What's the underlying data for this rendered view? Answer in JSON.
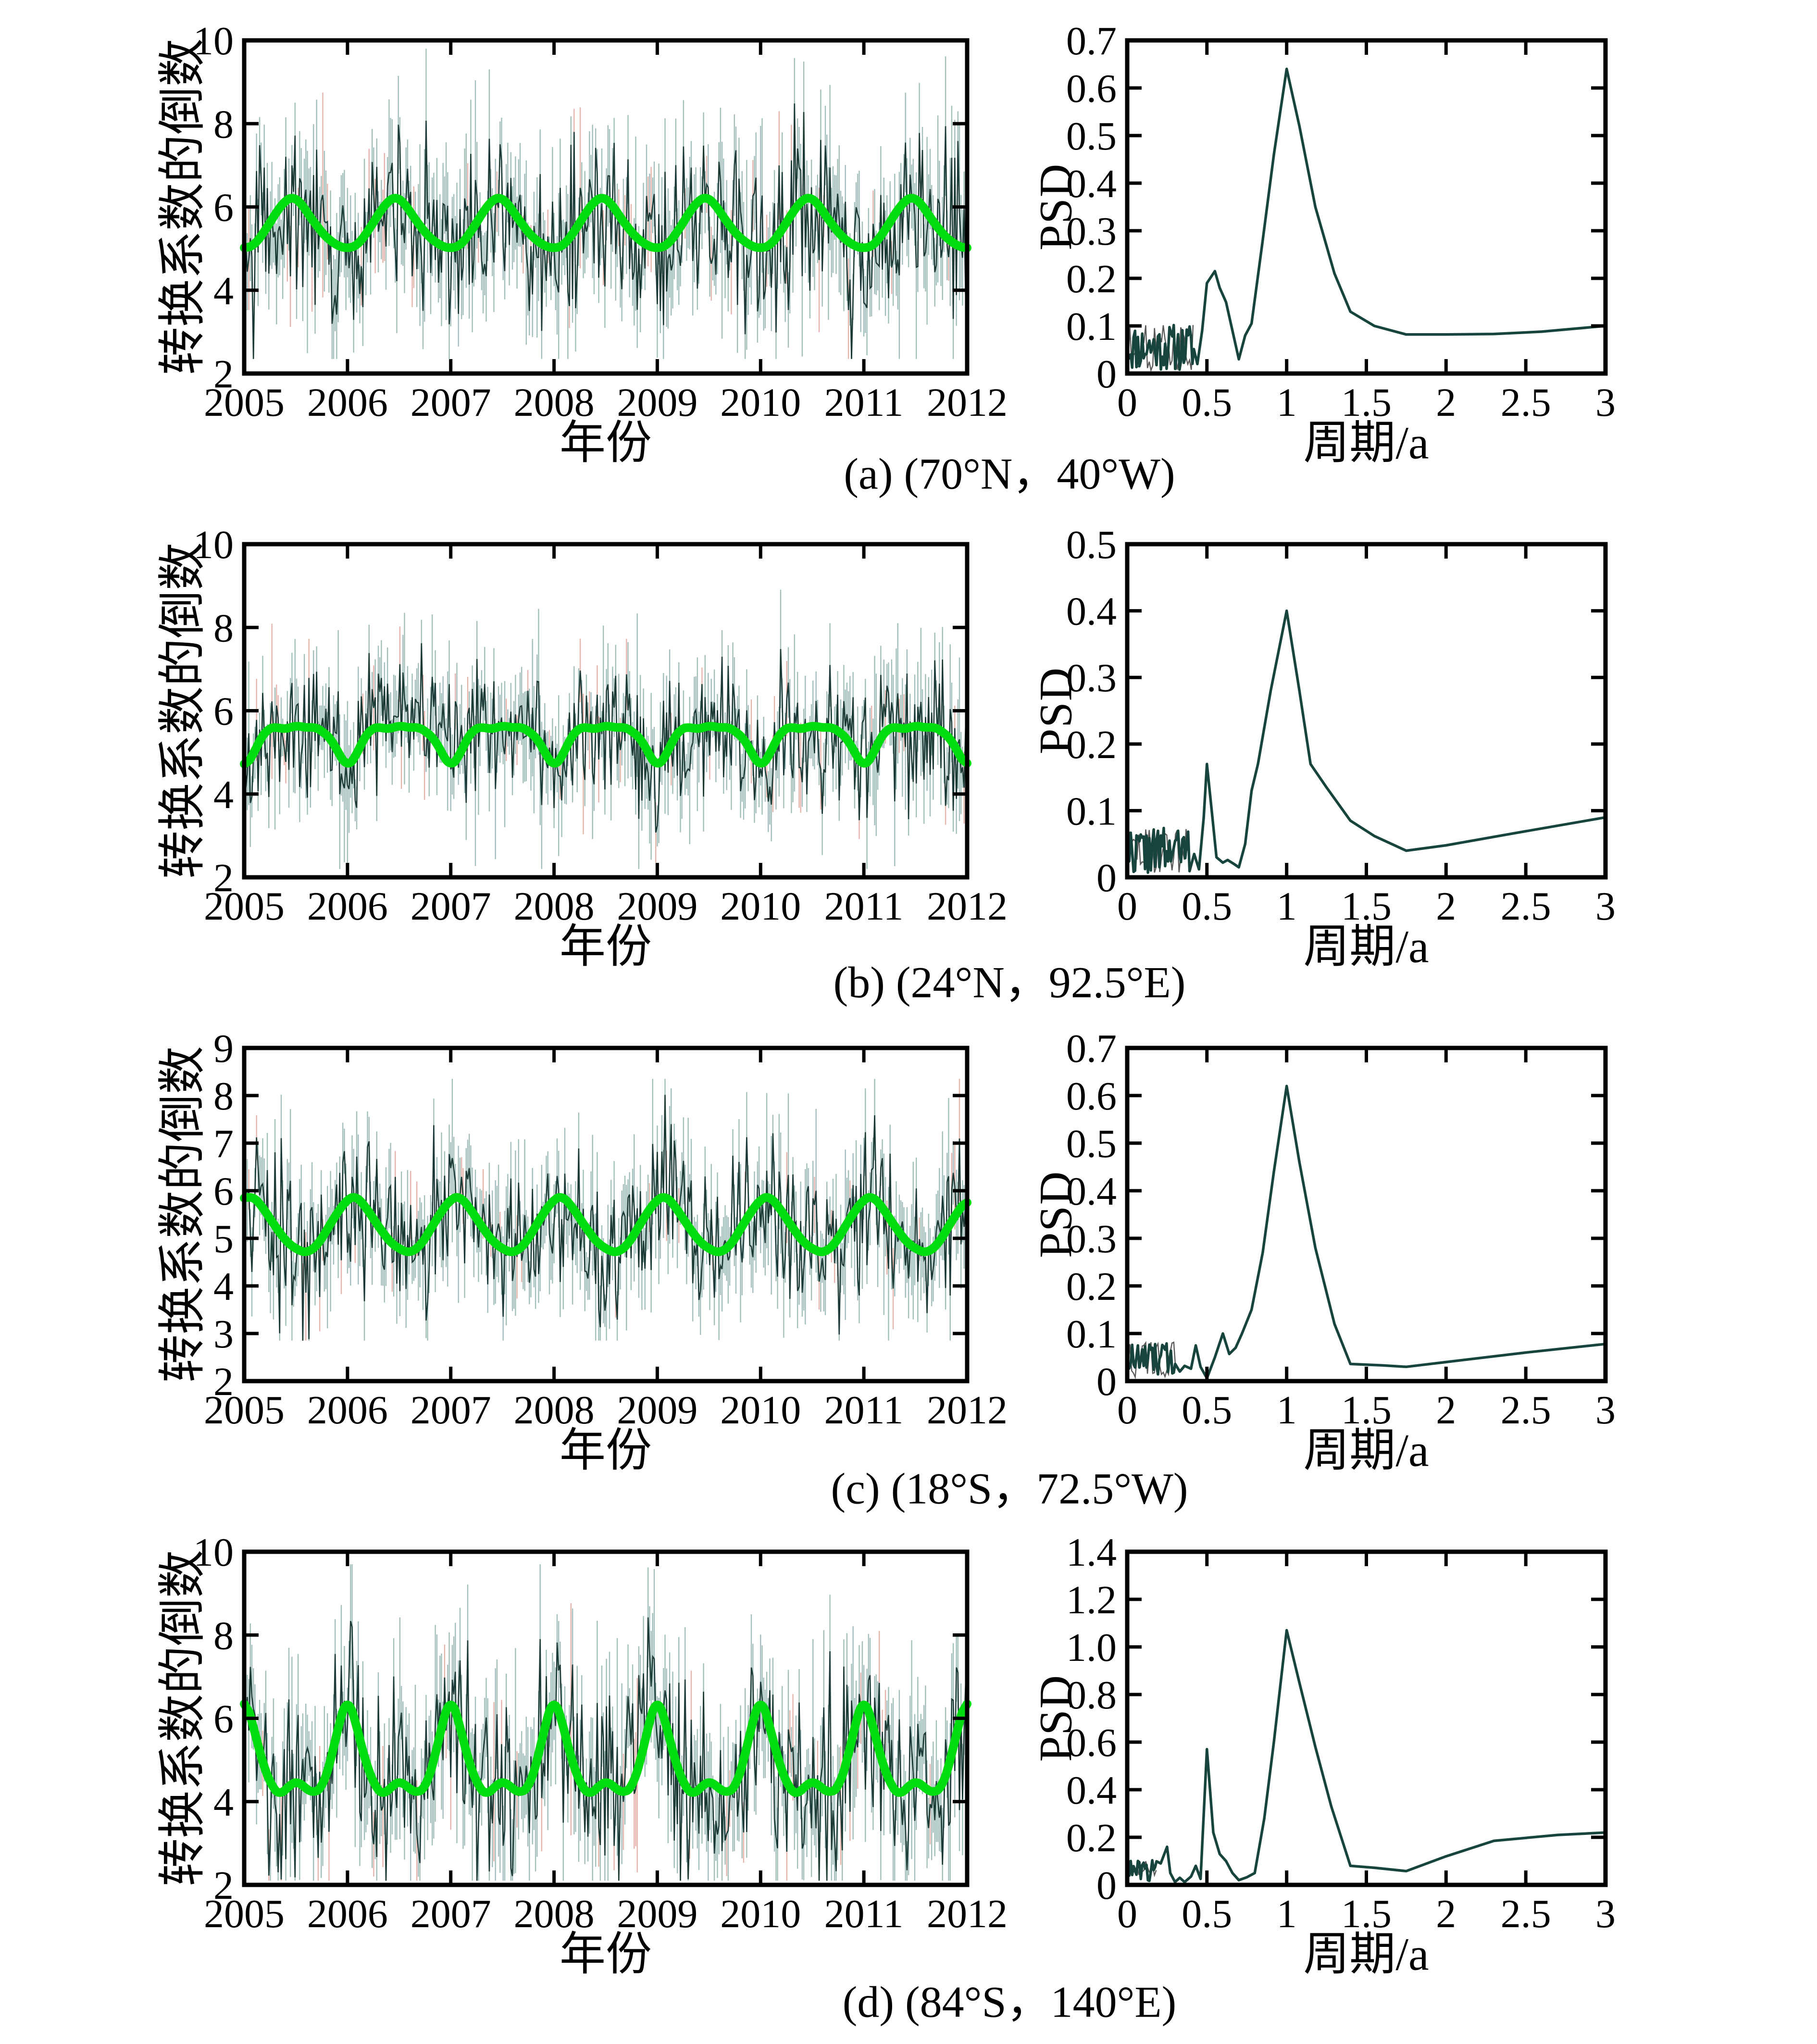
{
  "colors": {
    "trend": "#00dc0f",
    "noise_bar": "#a2bebb",
    "noise_bar_alt": "#e4b4ac",
    "noise_line": "#1b3a35",
    "psd_line": "#17453d",
    "axis": "#000000",
    "background": "#ffffff"
  },
  "chart_data": {
    "type": "line",
    "description": "Four station panels. Left charts: daily reciprocal of conversion coefficient (noisy dark series with light error bars) with smooth green seasonal fit, 2005-2012. Right charts: PSD vs period in years with dominant annual (1 a) peak and semiannual (0.5 a) secondary peak.",
    "rows": [
      {
        "id": "a",
        "caption": "(a) (70°N，40°W)",
        "timeseries": {
          "ylabel": "转换系数的倒数",
          "xlabel": "年份",
          "xlim": [
            2005,
            2012
          ],
          "ylim": [
            2,
            10
          ],
          "xtick_labels": [
            "2005",
            "2006",
            "2007",
            "2008",
            "2009",
            "2010",
            "2011",
            "2012"
          ],
          "ytick_values": [
            2,
            4,
            6,
            8,
            10
          ],
          "ytick_labels": [
            "2",
            "4",
            "6",
            "8",
            "10"
          ],
          "trend_summary": "annual cycle: min ~5.0 at year start, max ~6.25 mid-year",
          "seasonal_profile": [
            [
              0,
              5.0
            ],
            [
              0.1,
              5.08
            ],
            [
              0.22,
              5.5
            ],
            [
              0.33,
              5.95
            ],
            [
              0.42,
              6.2
            ],
            [
              0.47,
              6.25
            ],
            [
              0.55,
              6.1
            ],
            [
              0.65,
              5.72
            ],
            [
              0.78,
              5.3
            ],
            [
              0.9,
              5.07
            ],
            [
              1,
              5.0
            ]
          ],
          "noise": {
            "seed": 101,
            "sd": 1.05,
            "err": 0.85,
            "clip": [
              2.35,
              9.8
            ]
          }
        },
        "psd": {
          "ylabel": "PSD",
          "xlabel": "周期/a",
          "xlim": [
            0,
            3
          ],
          "ylim": [
            0,
            0.7
          ],
          "xtick_values": [
            0,
            0.5,
            1,
            1.5,
            2,
            2.5,
            3
          ],
          "xtick_labels": [
            "0",
            "0.5",
            "1",
            "1.5",
            "2",
            "2.5",
            "3"
          ],
          "ytick_values": [
            0,
            0.1,
            0.2,
            0.3,
            0.4,
            0.5,
            0.6,
            0.7
          ],
          "ytick_labels": [
            "0",
            "0.1",
            "0.2",
            "0.3",
            "0.4",
            "0.5",
            "0.6",
            "0.7"
          ],
          "main_peak": {
            "period_a": 1.0,
            "psd": 0.64
          },
          "secondary_peak": {
            "period_a": 0.55,
            "psd": 0.21
          },
          "noise": {
            "x_end": 0.42,
            "mean": 0.055,
            "amp": 0.05,
            "seed": 11
          },
          "points": [
            [
              0.44,
              0.02
            ],
            [
              0.47,
              0.09
            ],
            [
              0.5,
              0.19
            ],
            [
              0.55,
              0.215
            ],
            [
              0.58,
              0.18
            ],
            [
              0.62,
              0.15
            ],
            [
              0.66,
              0.09
            ],
            [
              0.7,
              0.03
            ],
            [
              0.74,
              0.08
            ],
            [
              0.78,
              0.105
            ],
            [
              0.85,
              0.28
            ],
            [
              0.92,
              0.46
            ],
            [
              1.0,
              0.64
            ],
            [
              1.08,
              0.52
            ],
            [
              1.18,
              0.35
            ],
            [
              1.3,
              0.21
            ],
            [
              1.4,
              0.13
            ],
            [
              1.55,
              0.1
            ],
            [
              1.75,
              0.082
            ],
            [
              2.0,
              0.082
            ],
            [
              2.3,
              0.083
            ],
            [
              2.6,
              0.088
            ],
            [
              3.0,
              0.1
            ]
          ]
        }
      },
      {
        "id": "b",
        "caption": "(b) (24°N，92.5°E)",
        "timeseries": {
          "ylabel": "转换系数的倒数",
          "xlabel": "年份",
          "xlim": [
            2005,
            2012
          ],
          "ylim": [
            2,
            10
          ],
          "xtick_labels": [
            "2005",
            "2006",
            "2007",
            "2008",
            "2009",
            "2010",
            "2011",
            "2012"
          ],
          "ytick_values": [
            2,
            4,
            6,
            8,
            10
          ],
          "ytick_labels": [
            "2",
            "4",
            "6",
            "8",
            "10"
          ],
          "trend_summary": "flat-topped plateau ~5.6 mid-year with narrow dips to ~4.65 at year boundaries",
          "seasonal_profile": [
            [
              0,
              4.65
            ],
            [
              0.07,
              4.85
            ],
            [
              0.15,
              5.3
            ],
            [
              0.22,
              5.55
            ],
            [
              0.3,
              5.62
            ],
            [
              0.38,
              5.55
            ],
            [
              0.45,
              5.6
            ],
            [
              0.52,
              5.65
            ],
            [
              0.6,
              5.58
            ],
            [
              0.68,
              5.62
            ],
            [
              0.76,
              5.5
            ],
            [
              0.85,
              5.3
            ],
            [
              0.93,
              4.9
            ],
            [
              1,
              4.65
            ]
          ],
          "noise": {
            "seed": 202,
            "sd": 0.82,
            "err": 0.7,
            "clip": [
              2.2,
              9.1
            ]
          }
        },
        "psd": {
          "ylabel": "PSD",
          "xlabel": "周期/a",
          "xlim": [
            0,
            3
          ],
          "ylim": [
            0,
            0.5
          ],
          "xtick_values": [
            0,
            0.5,
            1,
            1.5,
            2,
            2.5,
            3
          ],
          "xtick_labels": [
            "0",
            "0.5",
            "1",
            "1.5",
            "2",
            "2.5",
            "3"
          ],
          "ytick_values": [
            0,
            0.1,
            0.2,
            0.3,
            0.4,
            0.5
          ],
          "ytick_labels": [
            "0",
            "0.1",
            "0.2",
            "0.3",
            "0.4",
            "0.5"
          ],
          "main_peak": {
            "period_a": 1.0,
            "psd": 0.4
          },
          "secondary_peak": {
            "period_a": 0.5,
            "psd": 0.17
          },
          "noise": {
            "x_end": 0.4,
            "mean": 0.04,
            "amp": 0.035,
            "seed": 22
          },
          "points": [
            [
              0.42,
              0.035
            ],
            [
              0.45,
              0.012
            ],
            [
              0.48,
              0.09
            ],
            [
              0.5,
              0.17
            ],
            [
              0.53,
              0.1
            ],
            [
              0.56,
              0.03
            ],
            [
              0.6,
              0.022
            ],
            [
              0.63,
              0.026
            ],
            [
              0.67,
              0.02
            ],
            [
              0.7,
              0.015
            ],
            [
              0.74,
              0.05
            ],
            [
              0.78,
              0.13
            ],
            [
              0.82,
              0.17
            ],
            [
              0.9,
              0.28
            ],
            [
              1.0,
              0.4
            ],
            [
              1.08,
              0.28
            ],
            [
              1.15,
              0.17
            ],
            [
              1.25,
              0.135
            ],
            [
              1.4,
              0.085
            ],
            [
              1.55,
              0.062
            ],
            [
              1.75,
              0.04
            ],
            [
              2.0,
              0.048
            ],
            [
              2.4,
              0.065
            ],
            [
              3.0,
              0.09
            ]
          ]
        }
      },
      {
        "id": "c",
        "caption": "(c) (18°S，72.5°W)",
        "timeseries": {
          "ylabel": "转换系数的倒数",
          "xlabel": "年份",
          "xlim": [
            2005,
            2012
          ],
          "ylim": [
            2,
            9
          ],
          "xtick_labels": [
            "2005",
            "2006",
            "2007",
            "2008",
            "2009",
            "2010",
            "2011",
            "2012"
          ],
          "ytick_values": [
            2,
            3,
            4,
            5,
            6,
            7,
            8,
            9
          ],
          "ytick_labels": [
            "2",
            "3",
            "4",
            "5",
            "6",
            "7",
            "8",
            "9"
          ],
          "trend_summary": "annual sine: max ~5.9 near year start, min ~4.7 mid-year",
          "seasonal_profile": [
            [
              0,
              5.82
            ],
            [
              0.08,
              5.9
            ],
            [
              0.18,
              5.65
            ],
            [
              0.3,
              5.25
            ],
            [
              0.42,
              4.9
            ],
            [
              0.55,
              4.72
            ],
            [
              0.62,
              4.7
            ],
            [
              0.72,
              4.88
            ],
            [
              0.82,
              5.25
            ],
            [
              0.92,
              5.6
            ],
            [
              1,
              5.82
            ]
          ],
          "noise": {
            "seed": 303,
            "sd": 0.78,
            "err": 0.62,
            "clip": [
              2.85,
              8.35
            ]
          }
        },
        "psd": {
          "ylabel": "PSD",
          "xlabel": "周期/a",
          "xlim": [
            0,
            3
          ],
          "ylim": [
            0,
            0.7
          ],
          "xtick_values": [
            0,
            0.5,
            1,
            1.5,
            2,
            2.5,
            3
          ],
          "xtick_labels": [
            "0",
            "0.5",
            "1",
            "1.5",
            "2",
            "2.5",
            "3"
          ],
          "ytick_values": [
            0,
            0.1,
            0.2,
            0.3,
            0.4,
            0.5,
            0.6,
            0.7
          ],
          "ytick_labels": [
            "0",
            "0.1",
            "0.2",
            "0.3",
            "0.4",
            "0.5",
            "0.6",
            "0.7"
          ],
          "main_peak": {
            "period_a": 1.0,
            "psd": 0.62
          },
          "secondary_peak": {
            "period_a": 0.6,
            "psd": 0.1
          },
          "noise": {
            "x_end": 0.31,
            "mean": 0.045,
            "amp": 0.04,
            "seed": 33
          },
          "points": [
            [
              0.33,
              0.02
            ],
            [
              0.36,
              0.032
            ],
            [
              0.4,
              0.026
            ],
            [
              0.43,
              0.075
            ],
            [
              0.46,
              0.03
            ],
            [
              0.5,
              0.006
            ],
            [
              0.55,
              0.05
            ],
            [
              0.6,
              0.1
            ],
            [
              0.64,
              0.057
            ],
            [
              0.68,
              0.07
            ],
            [
              0.72,
              0.1
            ],
            [
              0.78,
              0.15
            ],
            [
              0.85,
              0.27
            ],
            [
              0.92,
              0.44
            ],
            [
              1.0,
              0.62
            ],
            [
              1.08,
              0.46
            ],
            [
              1.18,
              0.28
            ],
            [
              1.3,
              0.12
            ],
            [
              1.4,
              0.036
            ],
            [
              1.6,
              0.033
            ],
            [
              1.75,
              0.03
            ],
            [
              2.0,
              0.04
            ],
            [
              2.5,
              0.06
            ],
            [
              3.0,
              0.078
            ]
          ]
        }
      },
      {
        "id": "d",
        "caption": "(d) (84°S，140°E)",
        "timeseries": {
          "ylabel": "转换系数的倒数",
          "xlabel": "年份",
          "xlim": [
            2005,
            2012
          ],
          "ylim": [
            2,
            10
          ],
          "xtick_labels": [
            "2005",
            "2006",
            "2007",
            "2008",
            "2009",
            "2010",
            "2011",
            "2012"
          ],
          "ytick_values": [
            2,
            4,
            6,
            8,
            10
          ],
          "ytick_labels": [
            "2",
            "4",
            "6",
            "8",
            "10"
          ],
          "trend_summary": "sharp annual peak ~6.6 at year start, broad minimum ~4.2 with small semiannual bump ~4.5 mid-year",
          "seasonal_profile": [
            [
              0,
              6.55
            ],
            [
              0.08,
              5.9
            ],
            [
              0.18,
              4.9
            ],
            [
              0.28,
              4.3
            ],
            [
              0.35,
              4.15
            ],
            [
              0.45,
              4.42
            ],
            [
              0.52,
              4.5
            ],
            [
              0.6,
              4.3
            ],
            [
              0.68,
              4.2
            ],
            [
              0.76,
              4.35
            ],
            [
              0.84,
              5.0
            ],
            [
              0.92,
              5.9
            ],
            [
              1,
              6.55
            ]
          ],
          "noise": {
            "seed": 404,
            "sd": 1.15,
            "err": 0.95,
            "clip": [
              2.1,
              9.7
            ]
          }
        },
        "psd": {
          "ylabel": "PSD",
          "xlabel": "周期/a",
          "xlim": [
            0,
            3
          ],
          "ylim": [
            0,
            1.4
          ],
          "xtick_values": [
            0,
            0.5,
            1,
            1.5,
            2,
            2.5,
            3
          ],
          "xtick_labels": [
            "0",
            "0.5",
            "1",
            "1.5",
            "2",
            "2.5",
            "3"
          ],
          "ytick_values": [
            0,
            0.2,
            0.4,
            0.6,
            0.8,
            1.0,
            1.2,
            1.4
          ],
          "ytick_labels": [
            "0",
            "0.2",
            "0.4",
            "0.6",
            "0.8",
            "1.0",
            "1.2",
            "1.4"
          ],
          "main_peak": {
            "period_a": 1.0,
            "psd": 1.07
          },
          "secondary_peak": {
            "period_a": 0.5,
            "psd": 0.57
          },
          "noise": {
            "x_end": 0.19,
            "mean": 0.06,
            "amp": 0.045,
            "seed": 44
          },
          "points": [
            [
              0.21,
              0.09
            ],
            [
              0.25,
              0.16
            ],
            [
              0.27,
              0.05
            ],
            [
              0.3,
              0.012
            ],
            [
              0.33,
              0.03
            ],
            [
              0.36,
              0.012
            ],
            [
              0.4,
              0.035
            ],
            [
              0.43,
              0.08
            ],
            [
              0.46,
              0.025
            ],
            [
              0.5,
              0.57
            ],
            [
              0.54,
              0.22
            ],
            [
              0.58,
              0.13
            ],
            [
              0.62,
              0.1
            ],
            [
              0.66,
              0.05
            ],
            [
              0.7,
              0.02
            ],
            [
              0.75,
              0.032
            ],
            [
              0.8,
              0.05
            ],
            [
              0.86,
              0.28
            ],
            [
              0.92,
              0.6
            ],
            [
              1.0,
              1.07
            ],
            [
              1.08,
              0.85
            ],
            [
              1.18,
              0.58
            ],
            [
              1.28,
              0.33
            ],
            [
              1.4,
              0.08
            ],
            [
              1.55,
              0.072
            ],
            [
              1.75,
              0.058
            ],
            [
              2.0,
              0.12
            ],
            [
              2.3,
              0.185
            ],
            [
              2.7,
              0.21
            ],
            [
              3.0,
              0.22
            ]
          ]
        }
      }
    ]
  }
}
